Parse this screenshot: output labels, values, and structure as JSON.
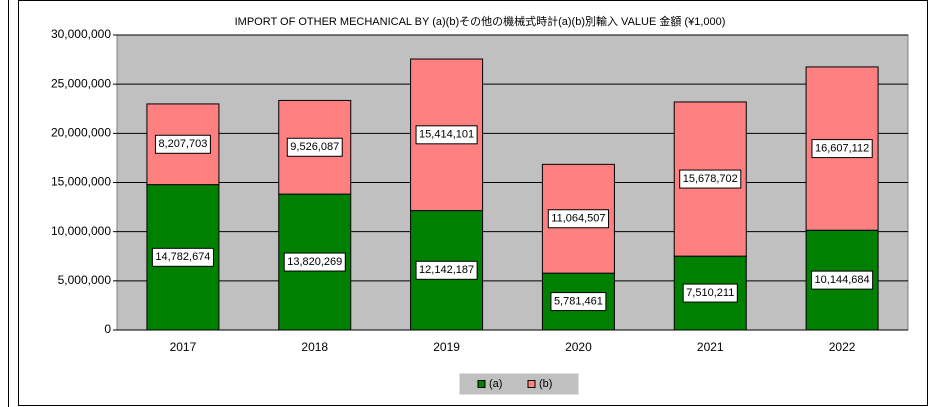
{
  "chart_data": {
    "type": "bar",
    "stacked": true,
    "title": "IMPORT OF OTHER MECHANICAL BY (a)(b)その他の機械式時計(a)(b)別輸入 VALUE 金額 (¥1,000)",
    "categories": [
      "2017",
      "2018",
      "2019",
      "2020",
      "2021",
      "2022"
    ],
    "series": [
      {
        "name": "(a)",
        "color": "#008000",
        "values": [
          14782674,
          13820269,
          12142187,
          5781461,
          7510211,
          10144684
        ],
        "value_labels": [
          "14,782,674",
          "13,820,269",
          "12,142,187",
          "5,781,461",
          "7,510,211",
          "10,144,684"
        ]
      },
      {
        "name": "(b)",
        "color": "#ff8080",
        "values": [
          8207703,
          9526087,
          15414101,
          11064507,
          15678702,
          16607112
        ],
        "value_labels": [
          "8,207,703",
          "9,526,087",
          "15,414,101",
          "11,064,507",
          "15,678,702",
          "16,607,112"
        ]
      }
    ],
    "ylim": [
      0,
      30000000
    ],
    "yticks": [
      0,
      {
        "value": 5000000,
        "label": "5,000,000"
      },
      {
        "value": 10000000,
        "label": "10,000,000"
      },
      {
        "value": 15000000,
        "label": "15,000,000"
      },
      {
        "value": 20000000,
        "label": "20,000,000"
      },
      {
        "value": 25000000,
        "label": "25,000,000"
      },
      {
        "value": 30000000,
        "label": "30,000,000"
      }
    ],
    "grid": true,
    "legend": "bottom",
    "plot_background": "#c0c0c0"
  }
}
